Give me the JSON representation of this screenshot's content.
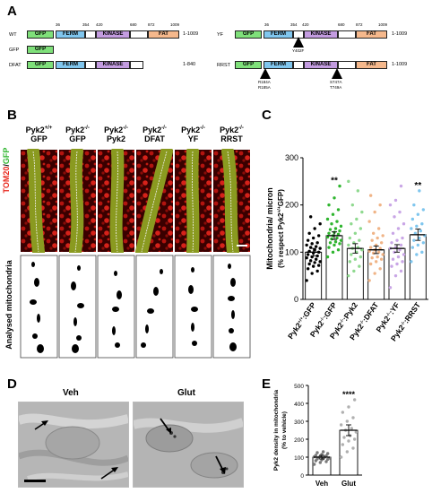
{
  "panels": {
    "A": "A",
    "B": "B",
    "C": "C",
    "D": "D",
    "E": "E"
  },
  "colors": {
    "gfp": "#7fe07a",
    "ferm": "#80c6ee",
    "kinase": "#c39ce0",
    "fat": "#f5b88c",
    "pyk2_wt": "#000000",
    "ko_gfp": "#2fb52f",
    "ko_pyk2": "#8fd98f",
    "ko_dfat": "#f0b487",
    "ko_yf": "#c9a6e6",
    "ko_rrst": "#7fc6ee"
  },
  "panelA": {
    "domains": {
      "gfp": "GFP",
      "ferm": "FERM",
      "kinase": "KINASE",
      "fat": "FAT"
    },
    "ticks": [
      "36",
      "354",
      "420",
      "680",
      "872",
      "1009"
    ],
    "constructs": {
      "wt": {
        "name": "WT",
        "range": "1-1009"
      },
      "gfp": {
        "name": "GFP"
      },
      "dfat": {
        "name": "DFAT",
        "range": "1-840"
      },
      "yf": {
        "name": "YF",
        "range": "1-1009",
        "mutation": "Y402F"
      },
      "rrst": {
        "name": "RRST",
        "range": "1-1009",
        "mut1_a": "R184A",
        "mut1_b": "R185A",
        "mut2_a": "S747A",
        "mut2_b": "T749A"
      }
    }
  },
  "panelB": {
    "columns": [
      {
        "line1": "Pyk2",
        "sup": "+/+",
        "line2": "GFP"
      },
      {
        "line1": "Pyk2",
        "sup": "-/-",
        "line2": "GFP"
      },
      {
        "line1": "Pyk2",
        "sup": "-/-",
        "line2": "Pyk2"
      },
      {
        "line1": "Pyk2",
        "sup": "-/-",
        "line2": "DFAT"
      },
      {
        "line1": "Pyk2",
        "sup": "-/-",
        "line2": "YF"
      },
      {
        "line1": "Pyk2",
        "sup": "-/-",
        "line2": "RRST"
      }
    ],
    "row1_label_red": "TOM20",
    "row1_label_sep": "/",
    "row1_label_green": "GFP",
    "row2_label": "Analysed mitochondria"
  },
  "panelD": {
    "veh": "Veh",
    "glut": "Glut"
  },
  "chart_data": [
    {
      "type": "scatter-bar",
      "ylabel_line1": "Mitochondria/ micron",
      "ylabel_line2a": "(% respect Pyk2",
      "ylabel_sup": "+/+",
      "ylabel_line2b": "GFP)",
      "ylim": [
        0,
        300
      ],
      "yticks": [
        "0",
        "100",
        "200",
        "300"
      ],
      "categories": [
        {
          "pre": "Pyk2",
          "sup": "+/+",
          "post": ":GFP"
        },
        {
          "pre": "Pyk2",
          "sup": "-/-",
          "post": ":GFP"
        },
        {
          "pre": "Pyk2",
          "sup": "-/-",
          "post": ":Pyk2"
        },
        {
          "pre": "Pyk2",
          "sup": "-/-",
          "post": ":DFAT"
        },
        {
          "pre": "Pyk2",
          "sup": "-/-",
          "post": ":YF"
        },
        {
          "pre": "Pyk2",
          "sup": "-/-",
          "post": ":RRST"
        }
      ],
      "means": [
        100,
        135,
        108,
        105,
        108,
        137
      ],
      "sem": [
        8,
        8,
        10,
        8,
        8,
        12
      ],
      "significance": [
        "",
        "**",
        "",
        "",
        "",
        "**"
      ],
      "points": [
        [
          40,
          55,
          60,
          65,
          70,
          72,
          75,
          78,
          80,
          82,
          85,
          88,
          90,
          92,
          95,
          98,
          100,
          102,
          105,
          108,
          110,
          112,
          115,
          118,
          120,
          125,
          130,
          135,
          140,
          150,
          160,
          175
        ],
        [
          90,
          100,
          105,
          110,
          115,
          118,
          120,
          122,
          125,
          128,
          130,
          132,
          135,
          138,
          140,
          142,
          145,
          148,
          150,
          155,
          160,
          165,
          170,
          180,
          190,
          200,
          215,
          240
        ],
        [
          50,
          60,
          70,
          80,
          85,
          90,
          95,
          100,
          105,
          108,
          110,
          115,
          120,
          125,
          130,
          140,
          150,
          160,
          170,
          185,
          200,
          230,
          250
        ],
        [
          40,
          55,
          65,
          75,
          80,
          85,
          88,
          90,
          95,
          98,
          100,
          102,
          105,
          108,
          110,
          115,
          120,
          125,
          130,
          135,
          140,
          150,
          165,
          185,
          200,
          220
        ],
        [
          25,
          50,
          60,
          70,
          75,
          80,
          85,
          90,
          95,
          100,
          105,
          108,
          110,
          115,
          120,
          125,
          130,
          140,
          150,
          160,
          175,
          185,
          200,
          210,
          240
        ],
        [
          80,
          95,
          100,
          110,
          115,
          120,
          125,
          130,
          135,
          140,
          145,
          150,
          155,
          160,
          170,
          180,
          190,
          200,
          230
        ]
      ]
    },
    {
      "type": "scatter-bar",
      "ylabel_line1": "Pyk2 density in mitochondria",
      "ylabel_line2": "(% to vehicle)",
      "ylim": [
        0,
        500
      ],
      "yticks": [
        "0",
        "100",
        "200",
        "300",
        "400",
        "500"
      ],
      "categories": [
        "Veh",
        "Glut"
      ],
      "means": [
        100,
        250
      ],
      "sem": [
        10,
        30
      ],
      "significance": [
        "",
        "****"
      ],
      "points": [
        [
          60,
          70,
          75,
          80,
          85,
          88,
          90,
          92,
          95,
          98,
          100,
          102,
          105,
          108,
          110,
          115,
          120,
          125,
          130
        ],
        [
          100,
          130,
          150,
          170,
          190,
          200,
          210,
          220,
          240,
          250,
          260,
          280,
          300,
          320,
          350,
          380,
          420
        ]
      ]
    }
  ]
}
